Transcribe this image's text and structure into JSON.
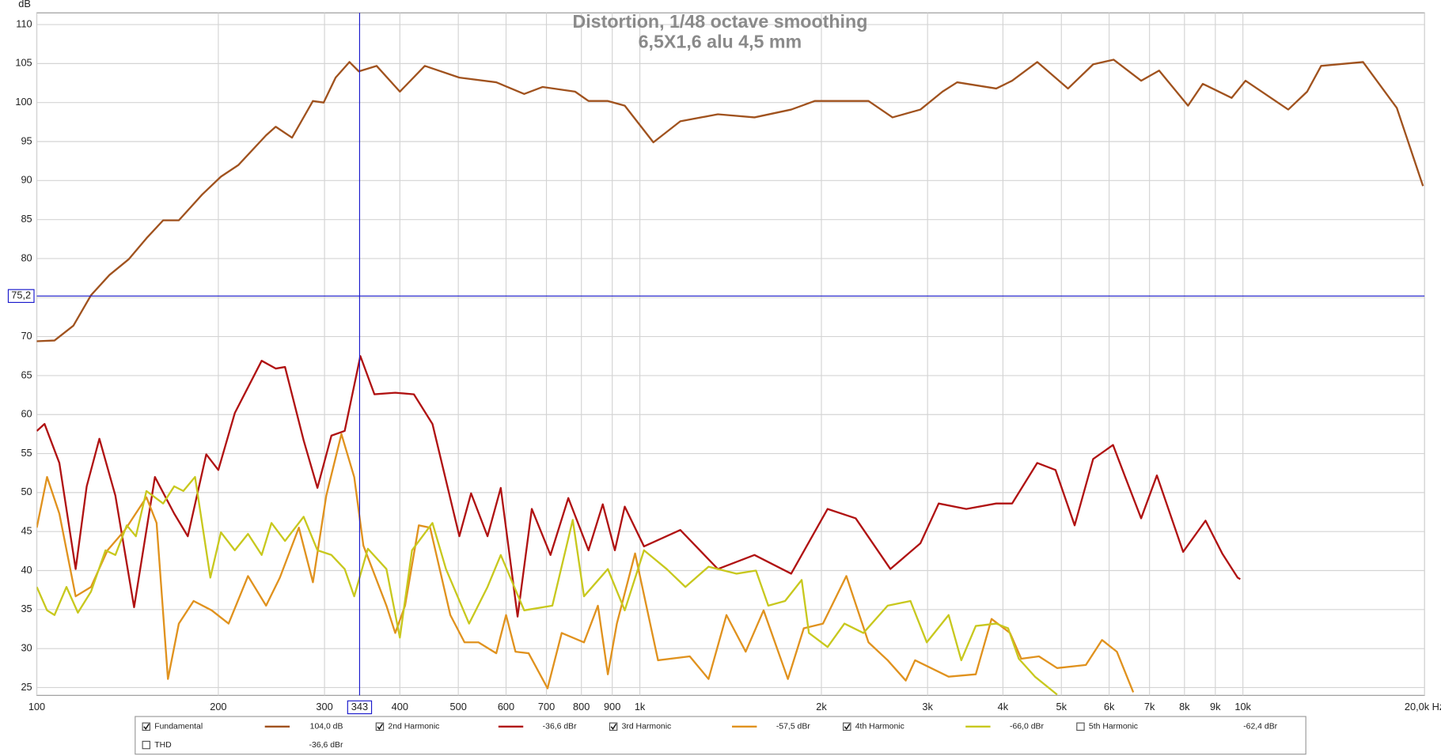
{
  "chart_data": {
    "type": "line",
    "title": "Distortion, 1/48 octave smoothing",
    "subtitle": "6,5X1,6 alu 4,5 mm",
    "y_unit": "dB",
    "log_x": true,
    "grid": true,
    "xlim": [
      100,
      20000
    ],
    "ylim": [
      24,
      111.5
    ],
    "xticks": [
      100,
      200,
      300,
      400,
      500,
      600,
      700,
      800,
      900,
      {
        "value": 1000,
        "label": "1k"
      },
      {
        "value": 2000,
        "label": "2k"
      },
      {
        "value": 3000,
        "label": "3k"
      },
      {
        "value": 4000,
        "label": "4k"
      },
      {
        "value": 5000,
        "label": "5k"
      },
      {
        "value": 6000,
        "label": "6k"
      },
      {
        "value": 7000,
        "label": "7k"
      },
      {
        "value": 8000,
        "label": "8k"
      },
      {
        "value": 9000,
        "label": "9k"
      },
      {
        "value": 10000,
        "label": "10k"
      },
      {
        "value": 20000,
        "label": "20,0k Hz"
      }
    ],
    "yticks": [
      25,
      30,
      35,
      40,
      45,
      50,
      55,
      60,
      65,
      70,
      75,
      80,
      85,
      90,
      95,
      100,
      105,
      110
    ],
    "cursor": {
      "x": 343,
      "x_label": "343",
      "y": 75.2,
      "y_label": "75,2",
      "color": "#1a1acc"
    },
    "series": [
      {
        "name": "Fundamental",
        "color": "#a0521e",
        "checked": true,
        "readout": "104,0 dB",
        "x": [
          100,
          107,
          115,
          123,
          132,
          142,
          152,
          162,
          172,
          188,
          202,
          216,
          240,
          249,
          265,
          287,
          299,
          313,
          330,
          342,
          366,
          400,
          440,
          502,
          578,
          643,
          690,
          781,
          822,
          885,
          944,
          1053,
          1167,
          1347,
          1549,
          1782,
          1950,
          2184,
          2394,
          2624,
          2919,
          3176,
          3359,
          3899,
          4143,
          4560,
          5129,
          5645,
          6104,
          6780,
          7262,
          8110,
          8580,
          9580,
          10100,
          11890,
          12780,
          13480,
          15820,
          18000,
          19890
        ],
        "values": [
          69.4,
          69.5,
          71.4,
          75.3,
          77.9,
          79.9,
          82.6,
          84.9,
          84.9,
          88.2,
          90.5,
          92,
          95.8,
          96.9,
          95.5,
          100.2,
          100,
          103.2,
          105.2,
          104,
          104.7,
          101.4,
          104.7,
          103.2,
          102.6,
          101.1,
          102,
          101.4,
          100.2,
          100.2,
          99.6,
          94.9,
          97.6,
          98.5,
          98.1,
          99.1,
          100.2,
          100.2,
          100.2,
          98.1,
          99.1,
          101.4,
          102.6,
          101.8,
          102.8,
          105.2,
          101.8,
          104.9,
          105.5,
          102.8,
          104.1,
          99.6,
          102.4,
          100.6,
          102.8,
          99.1,
          101.4,
          104.7,
          105.2,
          99.3,
          89.3
        ]
      },
      {
        "name": "2nd Harmonic",
        "color": "#b01212",
        "checked": true,
        "readout": "-36,6 dBr",
        "x": [
          100,
          103,
          109,
          116,
          121,
          127,
          135,
          145,
          157,
          169,
          178,
          191,
          200,
          213,
          236,
          249,
          258,
          277,
          292,
          308,
          324,
          344,
          363,
          393,
          422,
          453,
          502,
          525,
          559,
          588,
          627,
          662,
          711,
          761,
          822,
          868,
          909,
          944,
          1016,
          1167,
          1347,
          1549,
          1782,
          2048,
          2280,
          2603,
          2919,
          3130,
          3478,
          3899,
          4143,
          4560,
          4889,
          5260,
          5645,
          6090,
          6380,
          6780,
          7200,
          7960,
          8670,
          9240,
          9800,
          9900
        ],
        "values": [
          57.9,
          58.8,
          53.8,
          40.2,
          50.8,
          56.9,
          49.6,
          35.3,
          52,
          47.3,
          44.4,
          54.9,
          52.9,
          60.2,
          66.9,
          65.9,
          66.1,
          56.7,
          50.6,
          57.3,
          57.9,
          67.5,
          62.6,
          62.8,
          62.6,
          58.8,
          44.4,
          49.9,
          44.4,
          50.6,
          34.1,
          47.9,
          42,
          49.3,
          42.6,
          48.5,
          42.6,
          48.2,
          43.1,
          45.2,
          40.2,
          42,
          39.6,
          47.9,
          46.7,
          40.2,
          43.5,
          48.6,
          47.9,
          48.6,
          48.6,
          53.8,
          52.9,
          45.8,
          54.3,
          56.1,
          52,
          46.7,
          52.2,
          42.4,
          46.4,
          42.2,
          39.1,
          38.9
        ]
      },
      {
        "name": "3rd Harmonic",
        "color": "#e0921e",
        "checked": true,
        "readout": "-57,5 dBr",
        "x": [
          100,
          104,
          109,
          116,
          123,
          131,
          140,
          152,
          158,
          165,
          172,
          182,
          195,
          208,
          224,
          240,
          253,
          272,
          287,
          302,
          320,
          336,
          348,
          380,
          393,
          408,
          430,
          449,
          485,
          512,
          540,
          578,
          600,
          622,
          654,
          703,
          742,
          808,
          852,
          885,
          916,
          982,
          1072,
          1210,
          1300,
          1392,
          1498,
          1604,
          1760,
          1870,
          2012,
          2200,
          2394,
          2576,
          2760,
          2860,
          3251,
          3606,
          3830,
          4110,
          4290,
          4590,
          4920,
          5490,
          5840,
          6180,
          6580
        ],
        "values": [
          45.5,
          52,
          47.3,
          36.7,
          37.9,
          42.6,
          45.2,
          49.4,
          46.1,
          26.1,
          33.2,
          36.1,
          34.9,
          33.2,
          39.3,
          35.5,
          39.1,
          45.5,
          38.5,
          49.6,
          57.5,
          52,
          43.2,
          35.5,
          32,
          35.5,
          45.8,
          45.5,
          34.3,
          30.8,
          30.8,
          29.4,
          34.3,
          29.6,
          29.4,
          24.9,
          32,
          30.8,
          35.5,
          26.7,
          33.2,
          42.2,
          28.5,
          29,
          26.1,
          34.3,
          29.6,
          34.9,
          26.1,
          32.6,
          33.2,
          39.3,
          30.8,
          28.5,
          25.9,
          28.5,
          26.4,
          26.7,
          33.8,
          32,
          28.7,
          29,
          27.5,
          27.9,
          31.1,
          29.6,
          24.4
        ]
      },
      {
        "name": "4th Harmonic",
        "color": "#c8c81e",
        "checked": true,
        "readout": "-66,0 dBr",
        "x": [
          100,
          104,
          107,
          112,
          117,
          123,
          130,
          135,
          141,
          146,
          152,
          162,
          169,
          175,
          183,
          194,
          202,
          213,
          224,
          236,
          245,
          258,
          277,
          292,
          308,
          324,
          336,
          354,
          380,
          400,
          419,
          453,
          477,
          521,
          559,
          588,
          643,
          716,
          774,
          808,
          885,
          944,
          1016,
          1108,
          1190,
          1300,
          1447,
          1558,
          1633,
          1741,
          1855,
          1907,
          2048,
          2184,
          2348,
          2576,
          2810,
          2991,
          3251,
          3412,
          3606,
          3899,
          4080,
          4250,
          4520,
          4920
        ],
        "values": [
          37.9,
          34.9,
          34.3,
          37.9,
          34.6,
          37.3,
          42.6,
          42,
          45.8,
          44.4,
          50.2,
          48.6,
          50.8,
          50.2,
          52,
          39.1,
          44.9,
          42.6,
          44.7,
          42,
          46.1,
          43.8,
          46.9,
          42.6,
          42,
          40.2,
          36.7,
          42.8,
          40.2,
          31.4,
          42.6,
          46.1,
          40.2,
          33.2,
          37.9,
          42,
          34.9,
          35.5,
          46.5,
          36.7,
          40.2,
          34.9,
          42.6,
          40.2,
          37.9,
          40.5,
          39.6,
          40,
          35.5,
          36.1,
          38.8,
          32,
          30.2,
          33.2,
          32,
          35.5,
          36.1,
          30.8,
          34.3,
          28.5,
          32.9,
          33.2,
          32.6,
          28.7,
          26.4,
          24.1
        ]
      },
      {
        "name": "5th Harmonic",
        "color": "#9cbc2a",
        "checked": false,
        "readout": "-62,4 dBr"
      },
      {
        "name": "THD",
        "color": "#444444",
        "checked": false,
        "readout": "-36,6 dBr"
      }
    ]
  }
}
